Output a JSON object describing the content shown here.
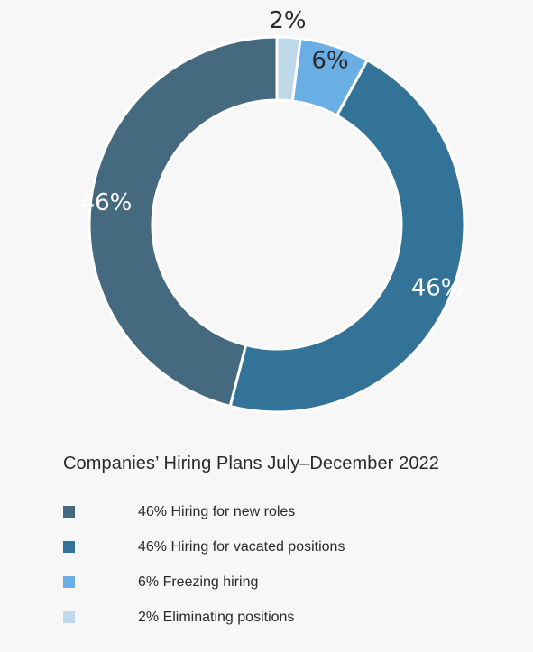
{
  "chart_data": {
    "type": "pie",
    "variant": "donut",
    "title": "Companies’ Hiring Plans July–December 2022",
    "start_from": "top",
    "direction": "counterclockwise",
    "slices": [
      {
        "label": "Hiring for new roles",
        "legend": "46% Hiring for new roles",
        "value": 46,
        "value_label": "46%",
        "color": "#456a80",
        "label_color": "#ffffff"
      },
      {
        "label": "Hiring for vacated positions",
        "legend": "46% Hiring for vacated positions",
        "value": 46,
        "value_label": "46%",
        "color": "#327397",
        "label_color": "#ffffff"
      },
      {
        "label": "Freezing hiring",
        "legend": "6% Freezing hiring",
        "value": 6,
        "value_label": "6%",
        "color": "#6aaee6",
        "label_color": "#2a2a2a"
      },
      {
        "label": "Eliminating positions",
        "legend": "2% Eliminating positions",
        "value": 2,
        "value_label": "2%",
        "color": "#bfd9ea",
        "label_color": "#2a2a2a"
      }
    ],
    "legend_position": "bottom-left"
  }
}
